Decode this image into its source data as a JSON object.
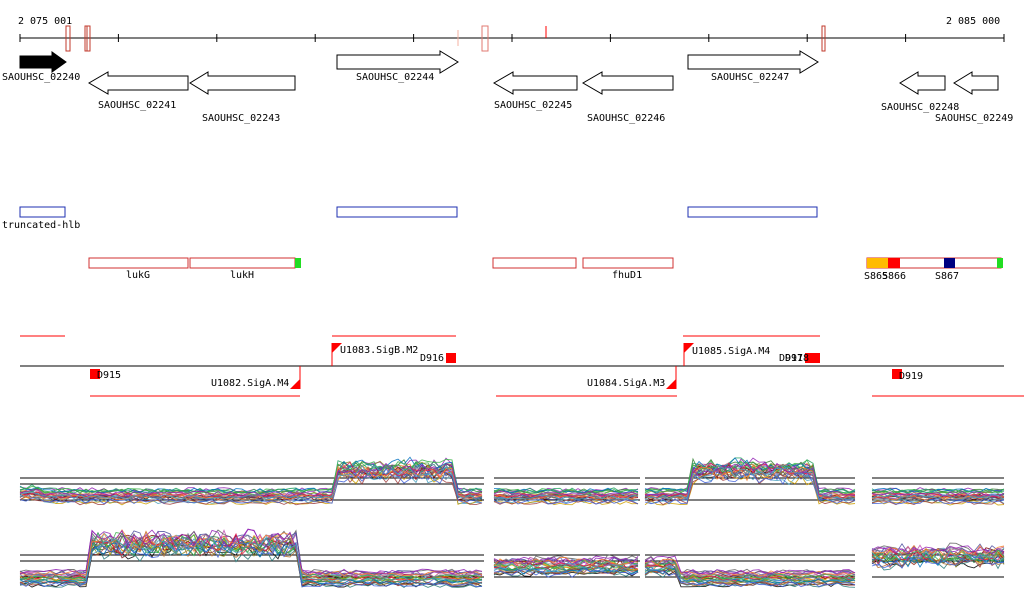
{
  "coordinates": {
    "start": "2 075 001",
    "end": "2 085 000"
  },
  "genes": [
    {
      "id": "SAOUHSC_02240",
      "strand": "+",
      "highlighted": true
    },
    {
      "id": "SAOUHSC_02241",
      "strand": "-"
    },
    {
      "id": "SAOUHSC_02243",
      "strand": "-"
    },
    {
      "id": "SAOUHSC_02244",
      "strand": "+"
    },
    {
      "id": "SAOUHSC_02245",
      "strand": "-"
    },
    {
      "id": "SAOUHSC_02246",
      "strand": "-"
    },
    {
      "id": "SAOUHSC_02247",
      "strand": "+"
    },
    {
      "id": "SAOUHSC_02248",
      "strand": "-"
    },
    {
      "id": "SAOUHSC_02249",
      "strand": "-"
    }
  ],
  "annotations_blue": [
    {
      "label": "truncated-hlb"
    },
    {
      "label": ""
    },
    {
      "label": ""
    }
  ],
  "annotations_red": [
    {
      "label": "lukG"
    },
    {
      "label": "lukH"
    },
    {
      "label": ""
    },
    {
      "label": "fhuD1"
    },
    {
      "label": ""
    }
  ],
  "segment_labels": [
    "S865",
    "S866",
    "S867"
  ],
  "promoters": [
    "U1083.SigB.M2",
    "U1085.SigA.M4",
    "U1082.SigA.M4",
    "U1084.SigA.M3"
  ],
  "terminators": [
    "D915",
    "D916",
    "D917",
    "D918",
    "D919"
  ],
  "colors": {
    "gene_red": "#c0392b",
    "feature_red": "#ff0000",
    "blue_box": "#1c2fb0",
    "green_tip": "#22dd22",
    "orange": "#ffbb00",
    "navy": "#000080"
  }
}
